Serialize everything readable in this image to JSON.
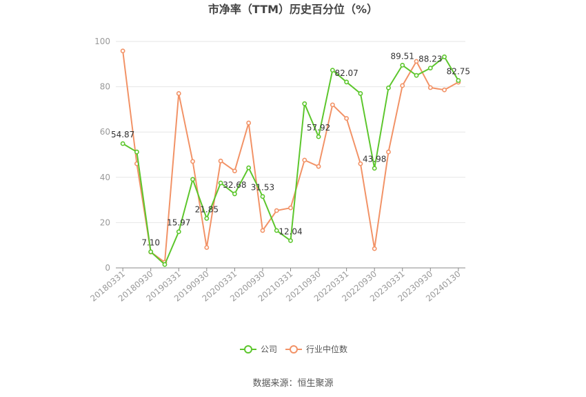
{
  "chart_data": {
    "type": "line",
    "title": "市净率（TTM）历史百分位（%）",
    "ylim": [
      0,
      100
    ],
    "yticks": [
      0,
      20,
      40,
      60,
      80,
      100
    ],
    "grid": "horizontal",
    "legend_position": "bottom",
    "x": [
      "20180331",
      "20180630",
      "20180930",
      "20181231",
      "20190331",
      "20190630",
      "20190930",
      "20191231",
      "20200331",
      "20200630",
      "20200930",
      "20201231",
      "20210331",
      "20210630",
      "20210930",
      "20211231",
      "20220331",
      "20220630",
      "20220930",
      "20221231",
      "20230331",
      "20230630",
      "20230930",
      "20231231",
      "20240130"
    ],
    "x_tick_labels": [
      "20180331",
      "20180930",
      "20190331",
      "20190930",
      "20200331",
      "20200930",
      "20210331",
      "20210930",
      "20220331",
      "20220930",
      "20230331",
      "20230930",
      "20240130"
    ],
    "series": [
      {
        "name": "公司",
        "color": "#5cc62c",
        "values": [
          54.87,
          51.2,
          7.1,
          1.5,
          15.97,
          39.1,
          21.85,
          37.5,
          32.68,
          44.2,
          31.53,
          16.5,
          12.04,
          72.5,
          57.92,
          87.3,
          82.07,
          77.0,
          43.98,
          79.5,
          89.51,
          85.0,
          88.23,
          93.2,
          82.75
        ],
        "data_labels": {
          "0": "54.87",
          "2": "7.10",
          "4": "15.97",
          "6": "21.85",
          "8": "32.68",
          "10": "31.53",
          "12": "12.04",
          "14": "57.92",
          "16": "82.07",
          "18": "43.98",
          "20": "89.51",
          "22": "88.23",
          "24": "82.75"
        }
      },
      {
        "name": "行业中位数",
        "color": "#f29266",
        "values": [
          95.8,
          46.0,
          7.0,
          2.5,
          77.0,
          47.0,
          9.0,
          47.2,
          42.8,
          64.0,
          16.5,
          25.3,
          26.5,
          47.6,
          44.8,
          72.0,
          66.0,
          46.0,
          8.5,
          51.2,
          80.5,
          91.2,
          79.6,
          78.6,
          82.0
        ]
      }
    ]
  },
  "source_text": "数据来源：恒生聚源"
}
